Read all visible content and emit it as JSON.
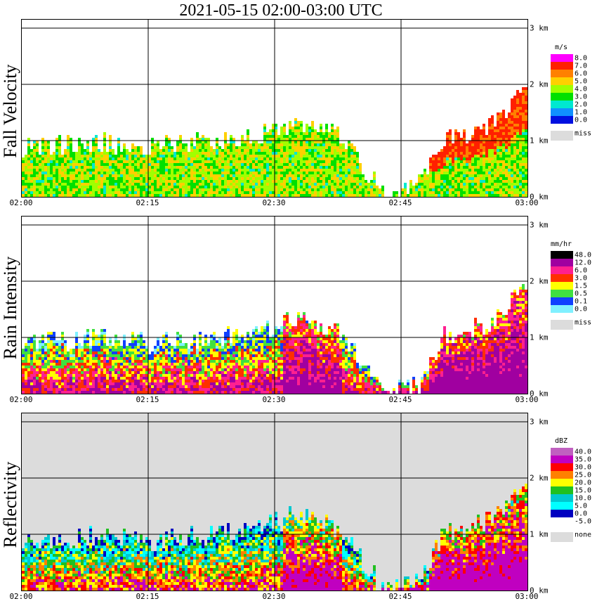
{
  "title": "2021-05-15   02:00-03:00 UTC",
  "x_ticks": [
    "02:00",
    "02:15",
    "02:30",
    "02:45",
    "03:00"
  ],
  "y_ticks": [
    "0 km",
    "1 km",
    "2 km",
    "3 km"
  ],
  "panels": [
    {
      "name": "Fall Velocity",
      "unit": "m/s",
      "legend_levels": [
        "8.0",
        "7.0",
        "6.0",
        "5.0",
        "4.0",
        "3.0",
        "2.0",
        "1.0",
        "0.0"
      ],
      "legend_colors": [
        "#ff00ff",
        "#ff2000",
        "#ff8000",
        "#ffd000",
        "#a0ff00",
        "#00e000",
        "#00e8d0",
        "#1090ff",
        "#0010e0"
      ],
      "missing_label": "miss"
    },
    {
      "name": "Rain Intensity",
      "unit": "mm/hr",
      "legend_levels": [
        "48.0",
        "12.0",
        "6.0",
        "3.0",
        "1.5",
        "0.5",
        "0.1",
        "0.0"
      ],
      "legend_colors": [
        "#000000",
        "#a000a0",
        "#ff2090",
        "#ff3000",
        "#ffff00",
        "#40e040",
        "#1040ff",
        "#80f0ff"
      ],
      "missing_label": "miss"
    },
    {
      "name": "Reflectivity",
      "unit": "dBZ",
      "legend_levels": [
        "40.0",
        "35.0",
        "30.0",
        "25.0",
        "20.0",
        "15.0",
        "10.0",
        "5.0",
        "0.0",
        "-5.0"
      ],
      "legend_colors": [
        "#c060c0",
        "#c000c0",
        "#ff0000",
        "#ff8000",
        "#ffff00",
        "#20c020",
        "#00c8d0",
        "#00ffff",
        "#0000c0",
        "#ffffff"
      ],
      "missing_label": "none"
    }
  ],
  "chart_data": [
    {
      "type": "heatmap",
      "title": "Fall Velocity",
      "x_range": [
        "02:00",
        "03:00"
      ],
      "ylim": [
        0,
        3.1
      ],
      "yunit": "km",
      "colorbar_unit": "m/s",
      "echo_top_km": [
        [
          0,
          0.85
        ],
        [
          5,
          0.9
        ],
        [
          10,
          0.95
        ],
        [
          15,
          0.85
        ],
        [
          20,
          0.95
        ],
        [
          25,
          1.0
        ],
        [
          28,
          1.1
        ],
        [
          32,
          1.3
        ],
        [
          35,
          1.2
        ],
        [
          38,
          1.0
        ],
        [
          41,
          0.35
        ],
        [
          43,
          0.05
        ],
        [
          47,
          0.2
        ],
        [
          50,
          1.0
        ],
        [
          55,
          1.2
        ],
        [
          60,
          1.9
        ]
      ]
    },
    {
      "type": "heatmap",
      "title": "Rain Intensity",
      "x_range": [
        "02:00",
        "03:00"
      ],
      "ylim": [
        0,
        3.1
      ],
      "yunit": "km",
      "colorbar_unit": "mm/hr",
      "echo_top_km": [
        [
          0,
          0.85
        ],
        [
          5,
          0.9
        ],
        [
          10,
          0.95
        ],
        [
          15,
          0.85
        ],
        [
          20,
          0.95
        ],
        [
          25,
          1.0
        ],
        [
          28,
          1.1
        ],
        [
          32,
          1.3
        ],
        [
          35,
          1.2
        ],
        [
          38,
          1.0
        ],
        [
          41,
          0.35
        ],
        [
          43,
          0.05
        ],
        [
          47,
          0.2
        ],
        [
          50,
          1.0
        ],
        [
          55,
          1.2
        ],
        [
          60,
          1.9
        ]
      ]
    },
    {
      "type": "heatmap",
      "title": "Reflectivity",
      "x_range": [
        "02:00",
        "03:00"
      ],
      "ylim": [
        0,
        3.1
      ],
      "yunit": "km",
      "colorbar_unit": "dBZ",
      "echo_top_km": [
        [
          0,
          0.85
        ],
        [
          5,
          0.9
        ],
        [
          10,
          0.95
        ],
        [
          15,
          0.85
        ],
        [
          20,
          0.95
        ],
        [
          25,
          1.0
        ],
        [
          28,
          1.1
        ],
        [
          32,
          1.3
        ],
        [
          35,
          1.2
        ],
        [
          38,
          1.0
        ],
        [
          41,
          0.35
        ],
        [
          43,
          0.05
        ],
        [
          47,
          0.2
        ],
        [
          50,
          1.0
        ],
        [
          55,
          1.2
        ],
        [
          60,
          1.9
        ]
      ]
    }
  ]
}
